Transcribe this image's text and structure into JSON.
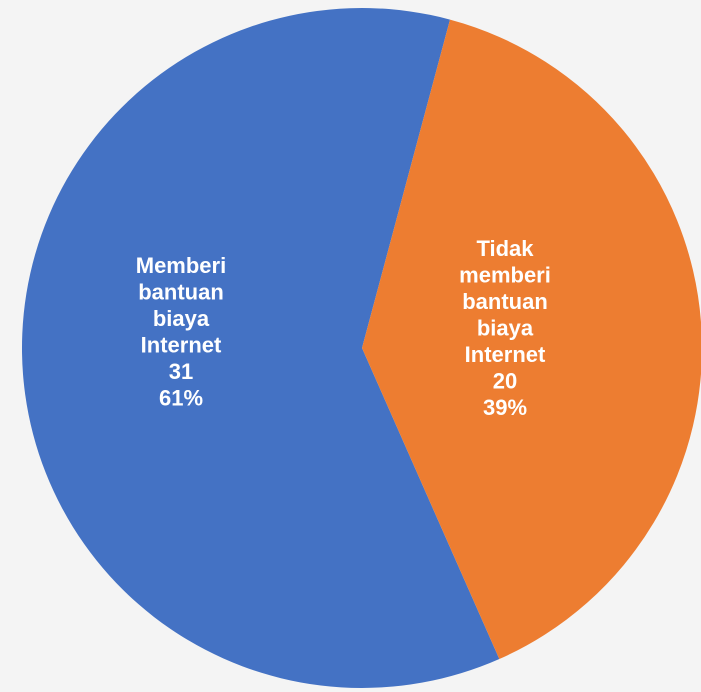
{
  "chart_data": {
    "type": "pie",
    "slices": [
      {
        "label_lines": [
          "Memberi",
          "bantuan",
          "biaya",
          "Internet"
        ],
        "value": 31,
        "percent": "61%",
        "color": "#4472c4"
      },
      {
        "label_lines": [
          "Tidak",
          "memberi",
          "bantuan",
          "biaya",
          "Internet"
        ],
        "value": 20,
        "percent": "39%",
        "color": "#ed7d31"
      }
    ],
    "legend": false
  }
}
